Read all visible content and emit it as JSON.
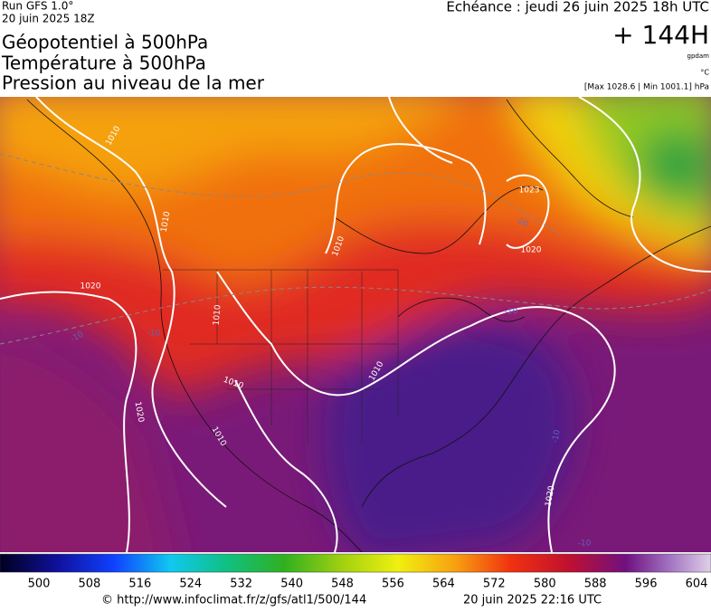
{
  "header": {
    "run": "Run GFS 1.0°",
    "run_date": "20 juin 2025 18Z",
    "titles": [
      "Géopotentiel à 500hPa",
      "Température à 500hPa",
      "Pression au niveau de la mer"
    ],
    "valid_time": "Echéance : jeudi 26 juin 2025 18h UTC",
    "lead": "+ 144H",
    "unit_geopotential": "gpdam",
    "unit_temperature": "°C",
    "pressure_range": "[Max 1028.6 | Min 1001.1] hPa"
  },
  "map": {
    "contour_labels": [
      "1010",
      "1010",
      "1020",
      "1010",
      "1010",
      "1010",
      "1010",
      "1010",
      "1023",
      "1020",
      "1020",
      "1020",
      "20",
      "-10",
      "-10",
      "-10",
      "-10",
      "-10"
    ]
  },
  "colorbar": {
    "labels": [
      500,
      508,
      516,
      524,
      532,
      540,
      548,
      556,
      564,
      572,
      580,
      588,
      596,
      604
    ]
  },
  "footer": {
    "url": "© http://www.infoclimat.fr/z/gfs/atl1/500/144",
    "generated": "20 juin 2025 22:16 UTC"
  }
}
